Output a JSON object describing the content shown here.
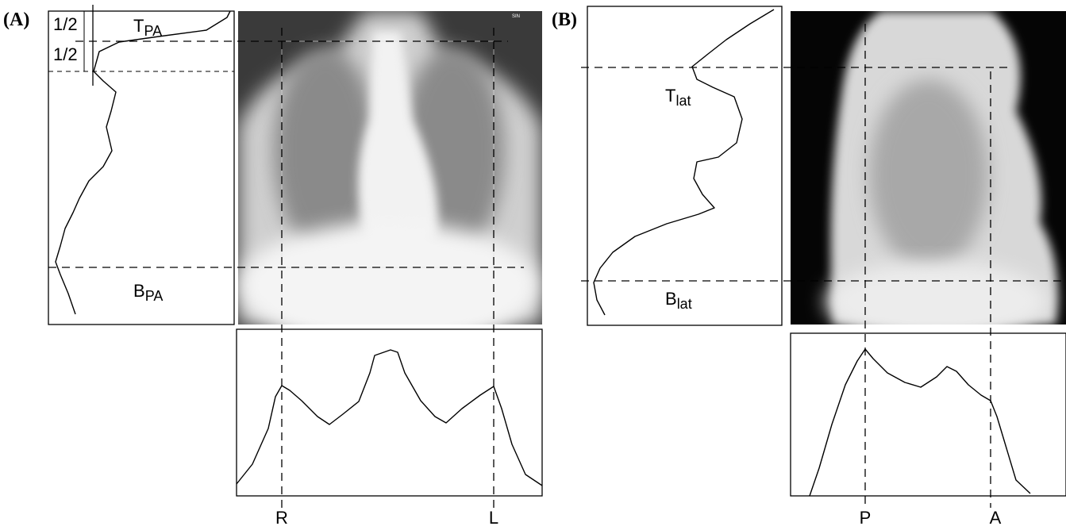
{
  "panel_a": {
    "label": "(A)",
    "half_top": "1/2",
    "half_bottom": "1/2",
    "top_marker": {
      "main": "T",
      "sub": "PA"
    },
    "bottom_marker": {
      "main": "B",
      "sub": "PA"
    },
    "left_label": "R",
    "right_label": "L"
  },
  "panel_b": {
    "label": "(B)",
    "top_marker": {
      "main": "T",
      "sub": "lat"
    },
    "bottom_marker": {
      "main": "B",
      "sub": "lat"
    },
    "left_label": "P",
    "right_label": "A"
  }
}
